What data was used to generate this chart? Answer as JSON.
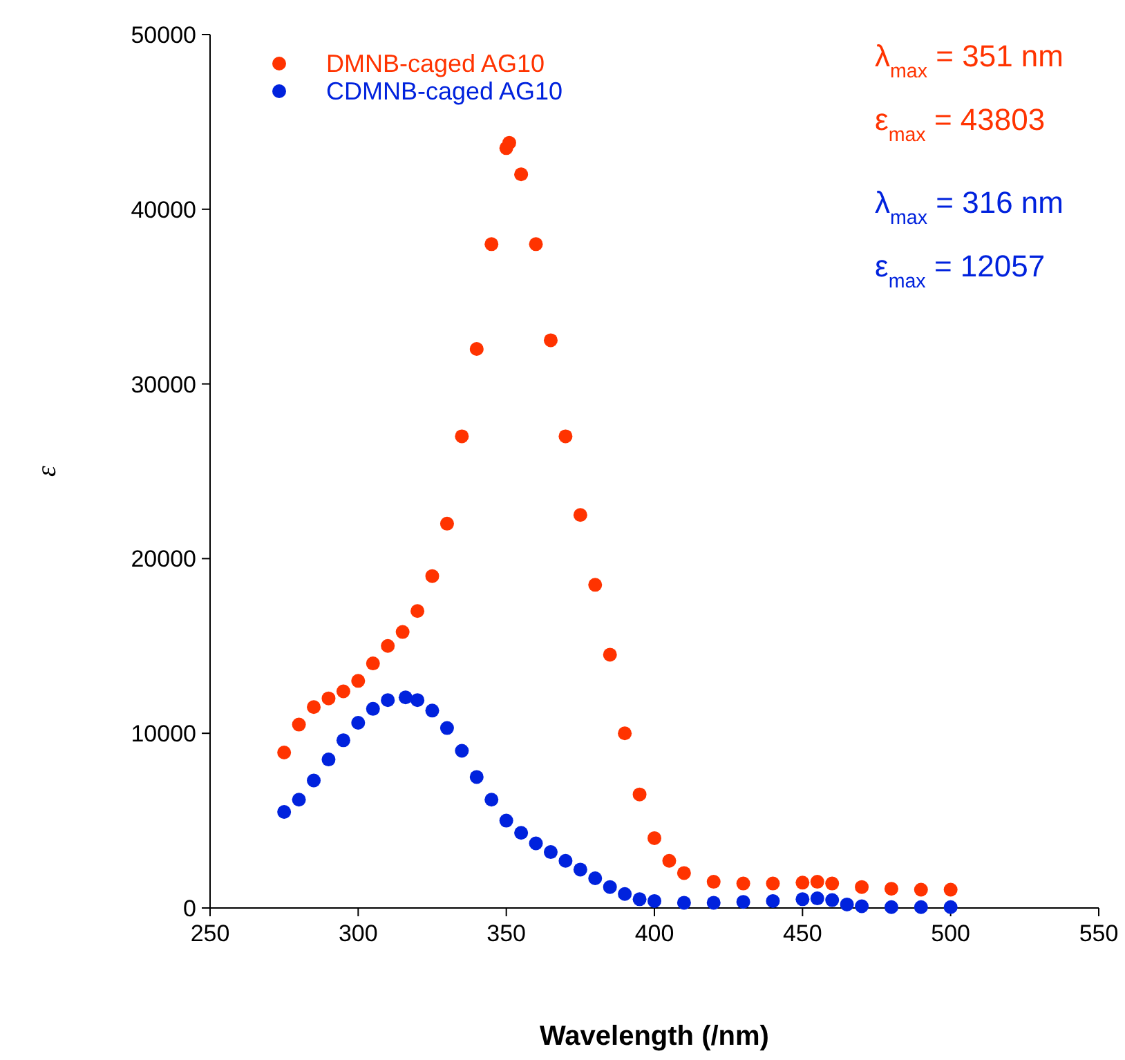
{
  "chart_data": {
    "type": "scatter",
    "xlabel": "Wavelength (/nm)",
    "ylabel": "ε",
    "xlim": [
      250,
      550
    ],
    "ylim": [
      0,
      50000
    ],
    "xticks": [
      250,
      300,
      350,
      400,
      450,
      500,
      550
    ],
    "yticks": [
      0,
      10000,
      20000,
      30000,
      40000,
      50000
    ],
    "grid": false,
    "legend": "top left",
    "marker": "circle",
    "annotations": [
      "λ$_{max}$ = 351 nm",
      "ε$_{max}$ = 43803",
      "λ$_{max}$ = 316 nm",
      "ε$_{max}$ = 12057"
    ],
    "series": [
      {
        "name": "DMNB-caged AG10",
        "color": "#ff3300",
        "x": [
          275,
          280,
          285,
          290,
          295,
          300,
          305,
          310,
          315,
          320,
          325,
          330,
          335,
          340,
          345,
          350,
          351,
          355,
          360,
          365,
          370,
          375,
          380,
          385,
          390,
          395,
          400,
          405,
          410,
          420,
          430,
          440,
          450,
          455,
          460,
          470,
          480,
          490,
          500
        ],
        "values": [
          8900,
          10500,
          11500,
          12000,
          12400,
          13000,
          14000,
          15000,
          15800,
          17000,
          19000,
          22000,
          27000,
          32000,
          38000,
          43500,
          43803,
          42000,
          38000,
          32500,
          27000,
          22500,
          18500,
          14500,
          10000,
          6500,
          4000,
          2700,
          2000,
          1500,
          1400,
          1400,
          1450,
          1500,
          1400,
          1200,
          1100,
          1050,
          1050
        ]
      },
      {
        "name": "CDMNB-caged AG10",
        "color": "#0022dd",
        "x": [
          275,
          280,
          285,
          290,
          295,
          300,
          305,
          310,
          316,
          320,
          325,
          330,
          335,
          340,
          345,
          350,
          355,
          360,
          365,
          370,
          375,
          380,
          385,
          390,
          395,
          400,
          410,
          420,
          430,
          440,
          450,
          455,
          460,
          465,
          470,
          480,
          490,
          500
        ],
        "values": [
          5500,
          6200,
          7300,
          8500,
          9600,
          10600,
          11400,
          11900,
          12057,
          11900,
          11300,
          10300,
          9000,
          7500,
          6200,
          5000,
          4300,
          3700,
          3200,
          2700,
          2200,
          1700,
          1200,
          800,
          500,
          400,
          300,
          300,
          350,
          400,
          500,
          550,
          450,
          200,
          100,
          50,
          50,
          50
        ]
      }
    ]
  }
}
